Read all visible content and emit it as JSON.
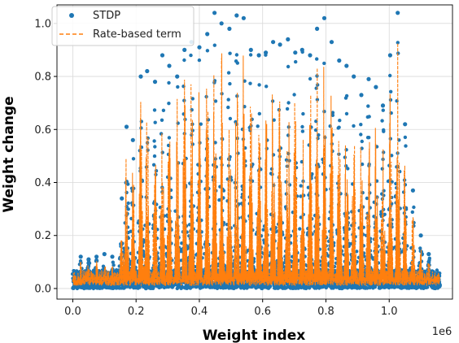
{
  "chart_data": {
    "type": "scatter",
    "title": "",
    "xlabel": "Weight index",
    "ylabel": "Weight change",
    "x_offset_label": "1e6",
    "xlim": [
      -0.05,
      1.2
    ],
    "ylim": [
      -0.04,
      1.07
    ],
    "xticks": [
      0.0,
      0.2,
      0.4,
      0.6,
      0.8,
      1.0
    ],
    "xtick_labels": [
      "0.0",
      "0.2",
      "0.4",
      "0.6",
      "0.8",
      "1.0"
    ],
    "yticks": [
      0.0,
      0.2,
      0.4,
      0.6,
      0.8,
      1.0
    ],
    "ytick_labels": [
      "0.0",
      "0.2",
      "0.4",
      "0.6",
      "0.8",
      "1.0"
    ],
    "grid": true,
    "legend_position": "top-left",
    "series": [
      {
        "name": "STDP",
        "style": "points",
        "color": "#1f77b4",
        "x_range": [
          0.0,
          1.16
        ],
        "baseline_range": [
          -0.02,
          0.05
        ],
        "peaks": {
          "x": [
            0.025,
            0.05,
            0.075,
            0.1,
            0.125,
            0.155,
            0.17,
            0.19,
            0.215,
            0.235,
            0.26,
            0.283,
            0.305,
            0.33,
            0.353,
            0.375,
            0.4,
            0.425,
            0.448,
            0.47,
            0.495,
            0.518,
            0.54,
            0.563,
            0.588,
            0.61,
            0.633,
            0.655,
            0.68,
            0.703,
            0.725,
            0.75,
            0.772,
            0.795,
            0.818,
            0.842,
            0.865,
            0.888,
            0.912,
            0.935,
            0.958,
            0.98,
            1.003,
            1.027,
            1.05,
            1.075,
            1.1,
            1.125
          ],
          "y": [
            0.12,
            0.11,
            0.12,
            0.13,
            0.12,
            0.34,
            0.61,
            0.56,
            0.8,
            0.82,
            0.78,
            0.88,
            0.84,
            0.8,
            0.9,
            0.93,
            0.91,
            0.96,
            1.04,
            1.0,
            0.98,
            1.03,
            1.02,
            0.9,
            0.88,
            0.89,
            0.93,
            0.92,
            0.94,
            0.89,
            0.9,
            0.88,
            0.98,
            1.02,
            0.93,
            0.86,
            0.84,
            0.8,
            0.73,
            0.79,
            0.76,
            0.69,
            0.88,
            1.04,
            0.62,
            0.37,
            0.2,
            0.13
          ]
        }
      },
      {
        "name": "Rate-based term",
        "style": "dashed",
        "color": "#ff7f0e",
        "peaks": {
          "x": [
            0.025,
            0.05,
            0.075,
            0.1,
            0.125,
            0.155,
            0.17,
            0.19,
            0.215,
            0.235,
            0.26,
            0.283,
            0.305,
            0.33,
            0.353,
            0.375,
            0.4,
            0.425,
            0.448,
            0.47,
            0.495,
            0.518,
            0.54,
            0.563,
            0.588,
            0.61,
            0.633,
            0.655,
            0.68,
            0.703,
            0.725,
            0.75,
            0.772,
            0.795,
            0.818,
            0.842,
            0.865,
            0.888,
            0.912,
            0.935,
            0.958,
            0.98,
            1.003,
            1.027,
            1.05,
            1.075,
            1.1,
            1.125
          ],
          "y": [
            0.09,
            0.08,
            0.09,
            0.1,
            0.09,
            0.28,
            0.52,
            0.48,
            0.7,
            0.72,
            0.68,
            0.8,
            0.76,
            0.72,
            0.82,
            0.86,
            0.84,
            0.89,
            0.95,
            0.92,
            0.9,
            0.93,
            0.95,
            0.83,
            0.8,
            0.81,
            0.86,
            0.86,
            0.88,
            0.82,
            0.83,
            0.81,
            0.9,
            0.94,
            0.86,
            0.79,
            0.76,
            0.72,
            0.64,
            0.7,
            0.67,
            0.6,
            0.8,
            0.95,
            0.54,
            0.3,
            0.15,
            0.1
          ]
        }
      }
    ]
  }
}
